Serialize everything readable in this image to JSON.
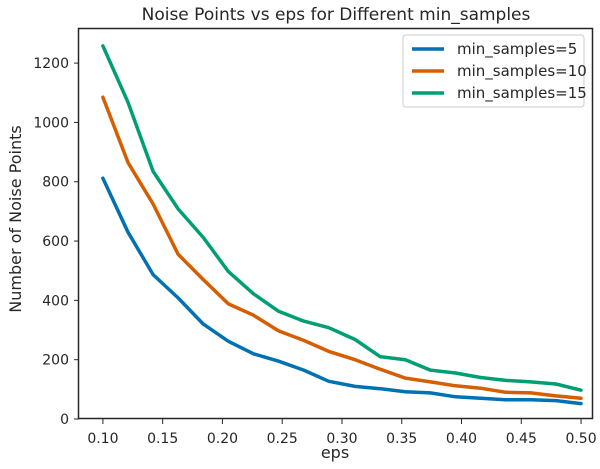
{
  "chart_data": {
    "type": "line",
    "title": "Noise Points vs eps for Different min_samples",
    "xlabel": "eps",
    "ylabel": "Number of Noise Points",
    "xlim": [
      0.08,
      0.51
    ],
    "ylim": [
      0,
      1315
    ],
    "xticks": [
      "0.10",
      "0.15",
      "0.20",
      "0.25",
      "0.30",
      "0.35",
      "0.40",
      "0.45",
      "0.50"
    ],
    "yticks": [
      "0",
      "200",
      "400",
      "600",
      "800",
      "1000",
      "1200"
    ],
    "grid": false,
    "legend_position": "top-right",
    "x": [
      0.1,
      0.121,
      0.142,
      0.163,
      0.184,
      0.205,
      0.226,
      0.247,
      0.268,
      0.289,
      0.311,
      0.332,
      0.353,
      0.374,
      0.395,
      0.416,
      0.437,
      0.458,
      0.479,
      0.5
    ],
    "series": [
      {
        "name": "min_samples=5",
        "color": "#0072b2",
        "values": [
          812,
          630,
          487,
          408,
          320,
          262,
          220,
          195,
          165,
          127,
          110,
          102,
          92,
          88,
          75,
          70,
          65,
          65,
          62,
          52
        ]
      },
      {
        "name": "min_samples=10",
        "color": "#d55e00",
        "values": [
          1085,
          865,
          725,
          555,
          470,
          388,
          350,
          297,
          265,
          228,
          200,
          168,
          138,
          125,
          112,
          104,
          90,
          88,
          78,
          70
        ]
      },
      {
        "name": "min_samples=15",
        "color": "#009e73",
        "values": [
          1258,
          1068,
          835,
          708,
          612,
          497,
          422,
          363,
          330,
          308,
          268,
          210,
          200,
          165,
          155,
          140,
          130,
          125,
          118,
          97
        ]
      }
    ]
  }
}
